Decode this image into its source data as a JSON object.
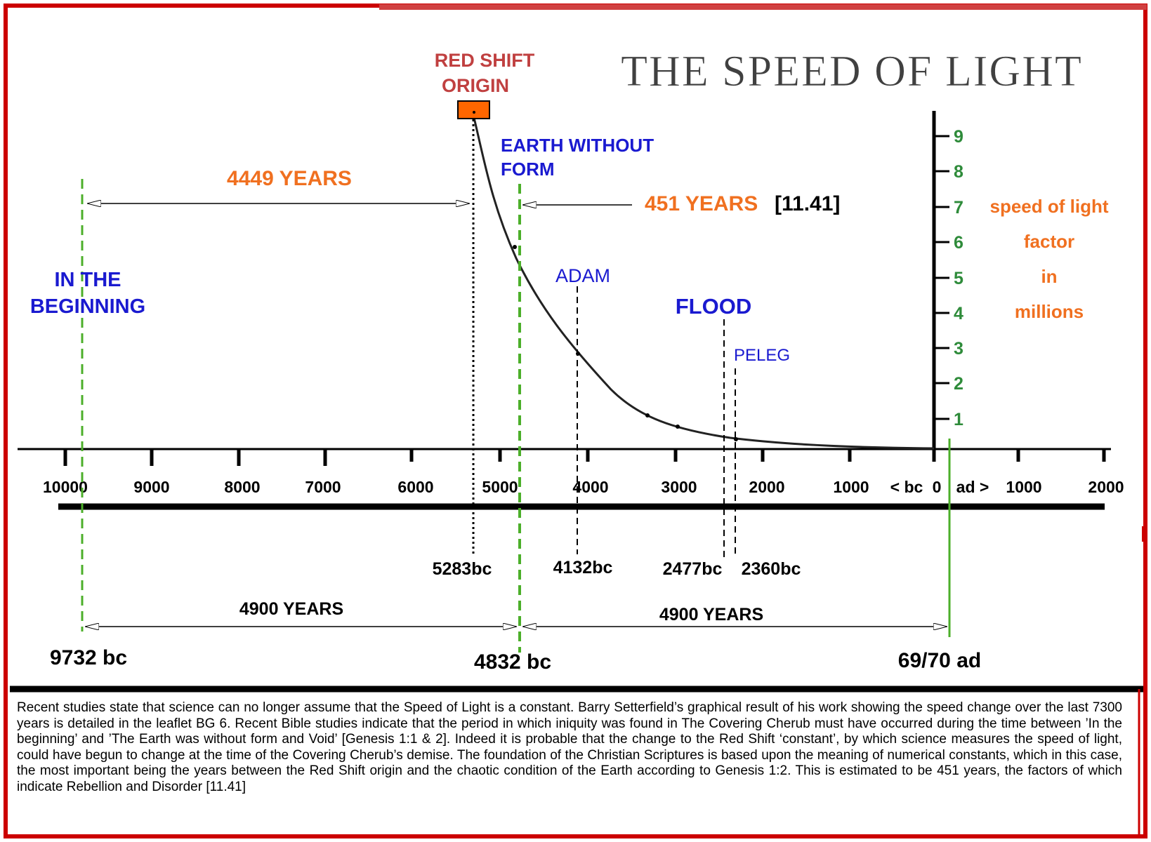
{
  "title": "THE SPEED OF LIGHT",
  "axis": {
    "y_label_lines": [
      "speed of light",
      "factor",
      "in",
      "millions"
    ],
    "y_ticks": [
      "1",
      "2",
      "3",
      "4",
      "5",
      "6",
      "7",
      "8",
      "9"
    ],
    "x_ticks": [
      "10000",
      "9000",
      "8000",
      "7000",
      "6000",
      "5000",
      "4000",
      "3000",
      "2000",
      "1000",
      "< bc",
      "0",
      "ad >",
      "1000",
      "2000"
    ]
  },
  "events": {
    "red_shift_origin": [
      "RED SHIFT",
      "ORIGIN"
    ],
    "earth_without_form": [
      "EARTH WITHOUT",
      "FORM"
    ],
    "in_the_beginning": [
      "IN THE",
      "BEGINNING"
    ],
    "adam": "ADAM",
    "flood": "FLOOD",
    "peleg": "PELEG"
  },
  "dates": {
    "d5283": "5283bc",
    "d4132": "4132bc",
    "d2477": "2477bc",
    "d2360": "2360bc",
    "d9732": "9732 bc",
    "d4832": "4832 bc",
    "d6970": "69/70 ad"
  },
  "spans": {
    "years_4449": "4449 YEARS",
    "years_451": "451 YEARS",
    "ref_451": "[11.41]",
    "years_4900_left": "4900 YEARS",
    "years_4900_right": "4900 YEARS"
  },
  "colors": {
    "frame_red": "#cc0000",
    "orange": "#f07020",
    "blue": "#1a1ad0",
    "green": "#2e8b3a",
    "dash_green": "#4caf2a",
    "marker_orange": "#ff6600",
    "title_gray": "#404040"
  },
  "caption": "Recent studies state that science can no longer assume that the Speed of Light is a constant. Barry Setterfield’s graphical result of  his work showing the speed change over the last 7300 years is detailed in the leaflet BG 6. Recent Bible studies indicate that the period in which iniquity was found in The Covering Cherub must have occurred during the time between ’In the beginning’ and ’The Earth was without form and Void’ [Genesis 1:1 & 2]. Indeed it is probable that the change to the Red Shift ‘constant’, by which science measures the speed of light, could have begun to change at the time of the Covering Cherub’s demise. The foundation of the Christian Scriptures is based upon the meaning of numerical constants, which in this case, the most important being the years between the Red Shift origin and the chaotic condition of the Earth according to Genesis 1:2. This is estimated to be 451 years, the factors of which indicate Rebellion and Disorder [11.41]"
}
